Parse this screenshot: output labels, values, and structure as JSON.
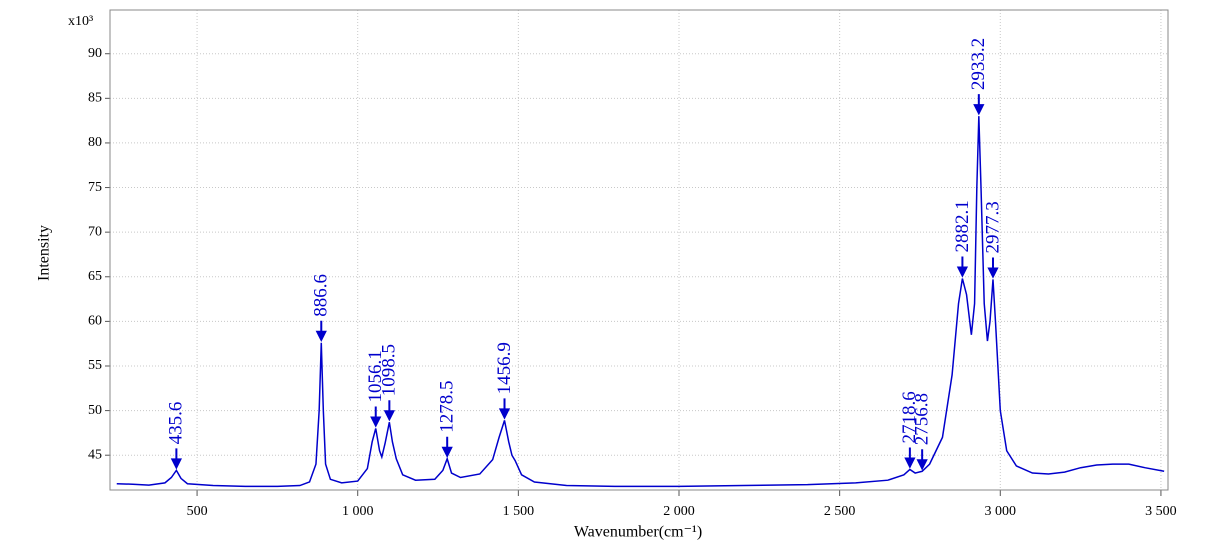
{
  "chart_data": {
    "type": "line",
    "x_label": "Wavenumber(cm⁻¹)",
    "y_label": "Intensity",
    "y_multiplier": "x10³",
    "color": "#0000cc",
    "grid": true,
    "xlim": [
      229,
      3522
    ],
    "ylim": [
      41.1,
      94.9
    ],
    "xticks": [
      500,
      {
        "value": 1000,
        "label": "1 000"
      },
      {
        "value": 1500,
        "label": "1 500"
      },
      {
        "value": 2000,
        "label": "2 000"
      },
      {
        "value": 2500,
        "label": "2 500"
      },
      {
        "value": 3000,
        "label": "3 000"
      },
      {
        "value": 3500,
        "label": "3 500"
      }
    ],
    "yticks": [
      45,
      50,
      55,
      60,
      65,
      70,
      75,
      80,
      85,
      90
    ],
    "x": [
      250,
      300,
      350,
      400,
      420,
      435.6,
      450,
      470,
      550,
      650,
      750,
      820,
      850,
      870,
      880,
      886.6,
      893,
      900,
      915,
      950,
      1000,
      1030,
      1045,
      1056.1,
      1068,
      1075,
      1085,
      1098.5,
      1108,
      1120,
      1140,
      1180,
      1240,
      1265,
      1278.5,
      1292,
      1320,
      1380,
      1420,
      1440,
      1456.9,
      1470,
      1480,
      1490,
      1510,
      1550,
      1650,
      1800,
      2000,
      2200,
      2400,
      2550,
      2650,
      2700,
      2718.6,
      2735,
      2756.8,
      2780,
      2820,
      2850,
      2870,
      2882.1,
      2895,
      2910,
      2920,
      2927,
      2933.2,
      2940,
      2950,
      2960,
      2968,
      2977.3,
      2985,
      3000,
      3020,
      3050,
      3100,
      3150,
      3200,
      3250,
      3300,
      3350,
      3400,
      3450,
      3510
    ],
    "series": [
      {
        "name": "Intensity",
        "values": [
          41.8,
          41.75,
          41.65,
          41.9,
          42.5,
          43.3,
          42.4,
          41.8,
          41.6,
          41.5,
          41.5,
          41.6,
          42.0,
          44,
          50,
          57.6,
          50,
          44,
          42.3,
          41.9,
          42.1,
          43.5,
          46.5,
          48,
          45.5,
          44.8,
          46.3,
          48.7,
          46.5,
          44.6,
          42.8,
          42.2,
          42.3,
          43.3,
          44.6,
          43.0,
          42.5,
          42.9,
          44.5,
          47,
          48.9,
          46.5,
          45.0,
          44.4,
          42.8,
          42.0,
          41.6,
          41.5,
          41.5,
          41.6,
          41.7,
          41.9,
          42.2,
          42.8,
          43.4,
          43.0,
          43.2,
          44,
          47,
          54,
          62,
          64.8,
          63,
          58.5,
          62,
          75,
          83,
          75,
          62,
          57.8,
          60,
          64.7,
          60,
          50,
          45.5,
          43.8,
          43.0,
          42.9,
          43.1,
          43.6,
          43.9,
          44.0,
          44.0,
          43.6,
          43.2
        ]
      }
    ],
    "peaks": {
      "x": [
        435.6,
        886.6,
        1056.1,
        1098.5,
        1278.5,
        1456.9,
        2718.6,
        2756.8,
        2882.1,
        2933.2,
        2977.3
      ],
      "y": [
        43.3,
        57.6,
        48,
        48.7,
        44.6,
        48.9,
        43.4,
        43.2,
        64.8,
        83,
        64.7
      ]
    }
  }
}
